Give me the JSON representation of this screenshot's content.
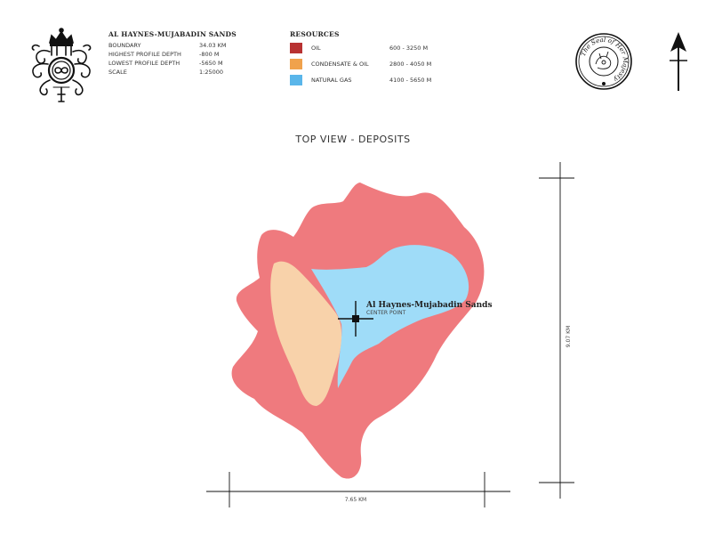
{
  "info": {
    "title": "AL HAYNES-MUJABADIN SANDS",
    "rows": [
      {
        "label": "BOUNDARY",
        "value": "34.03 KM"
      },
      {
        "label": "HIGHEST PROFILE DEPTH",
        "value": "-800 M"
      },
      {
        "label": "LOWEST PROFILE DEPTH",
        "value": "-5650 M"
      },
      {
        "label": "SCALE",
        "value": "1:25000"
      }
    ]
  },
  "resources": {
    "title": "RESOURCES",
    "items": [
      {
        "name": "OIL",
        "range": "600 - 3250 M",
        "color": "#b83232"
      },
      {
        "name": "CONDENSATE & OIL",
        "range": "2800 - 4050 M",
        "color": "#f0a24c"
      },
      {
        "name": "NATURAL GAS",
        "range": "4100 - 5650 M",
        "color": "#5ab6ea"
      }
    ]
  },
  "seal": {
    "text": "The Seal of Her Majesty"
  },
  "view_title": "TOP VIEW - DEPOSITS",
  "marker": {
    "name": "Al Haynes-Mujabadin Sands",
    "sub": "CENTER POINT"
  },
  "dimensions": {
    "width": "7.65 KM",
    "height": "9.07 KM"
  },
  "map_colors": {
    "oil": "#ef7a7e",
    "condensate": "#f8d2aa",
    "gas": "#9fdcf8"
  },
  "icons": {
    "crest": "royal-crest-icon",
    "seal": "royal-seal-icon",
    "north": "north-arrow-icon"
  }
}
